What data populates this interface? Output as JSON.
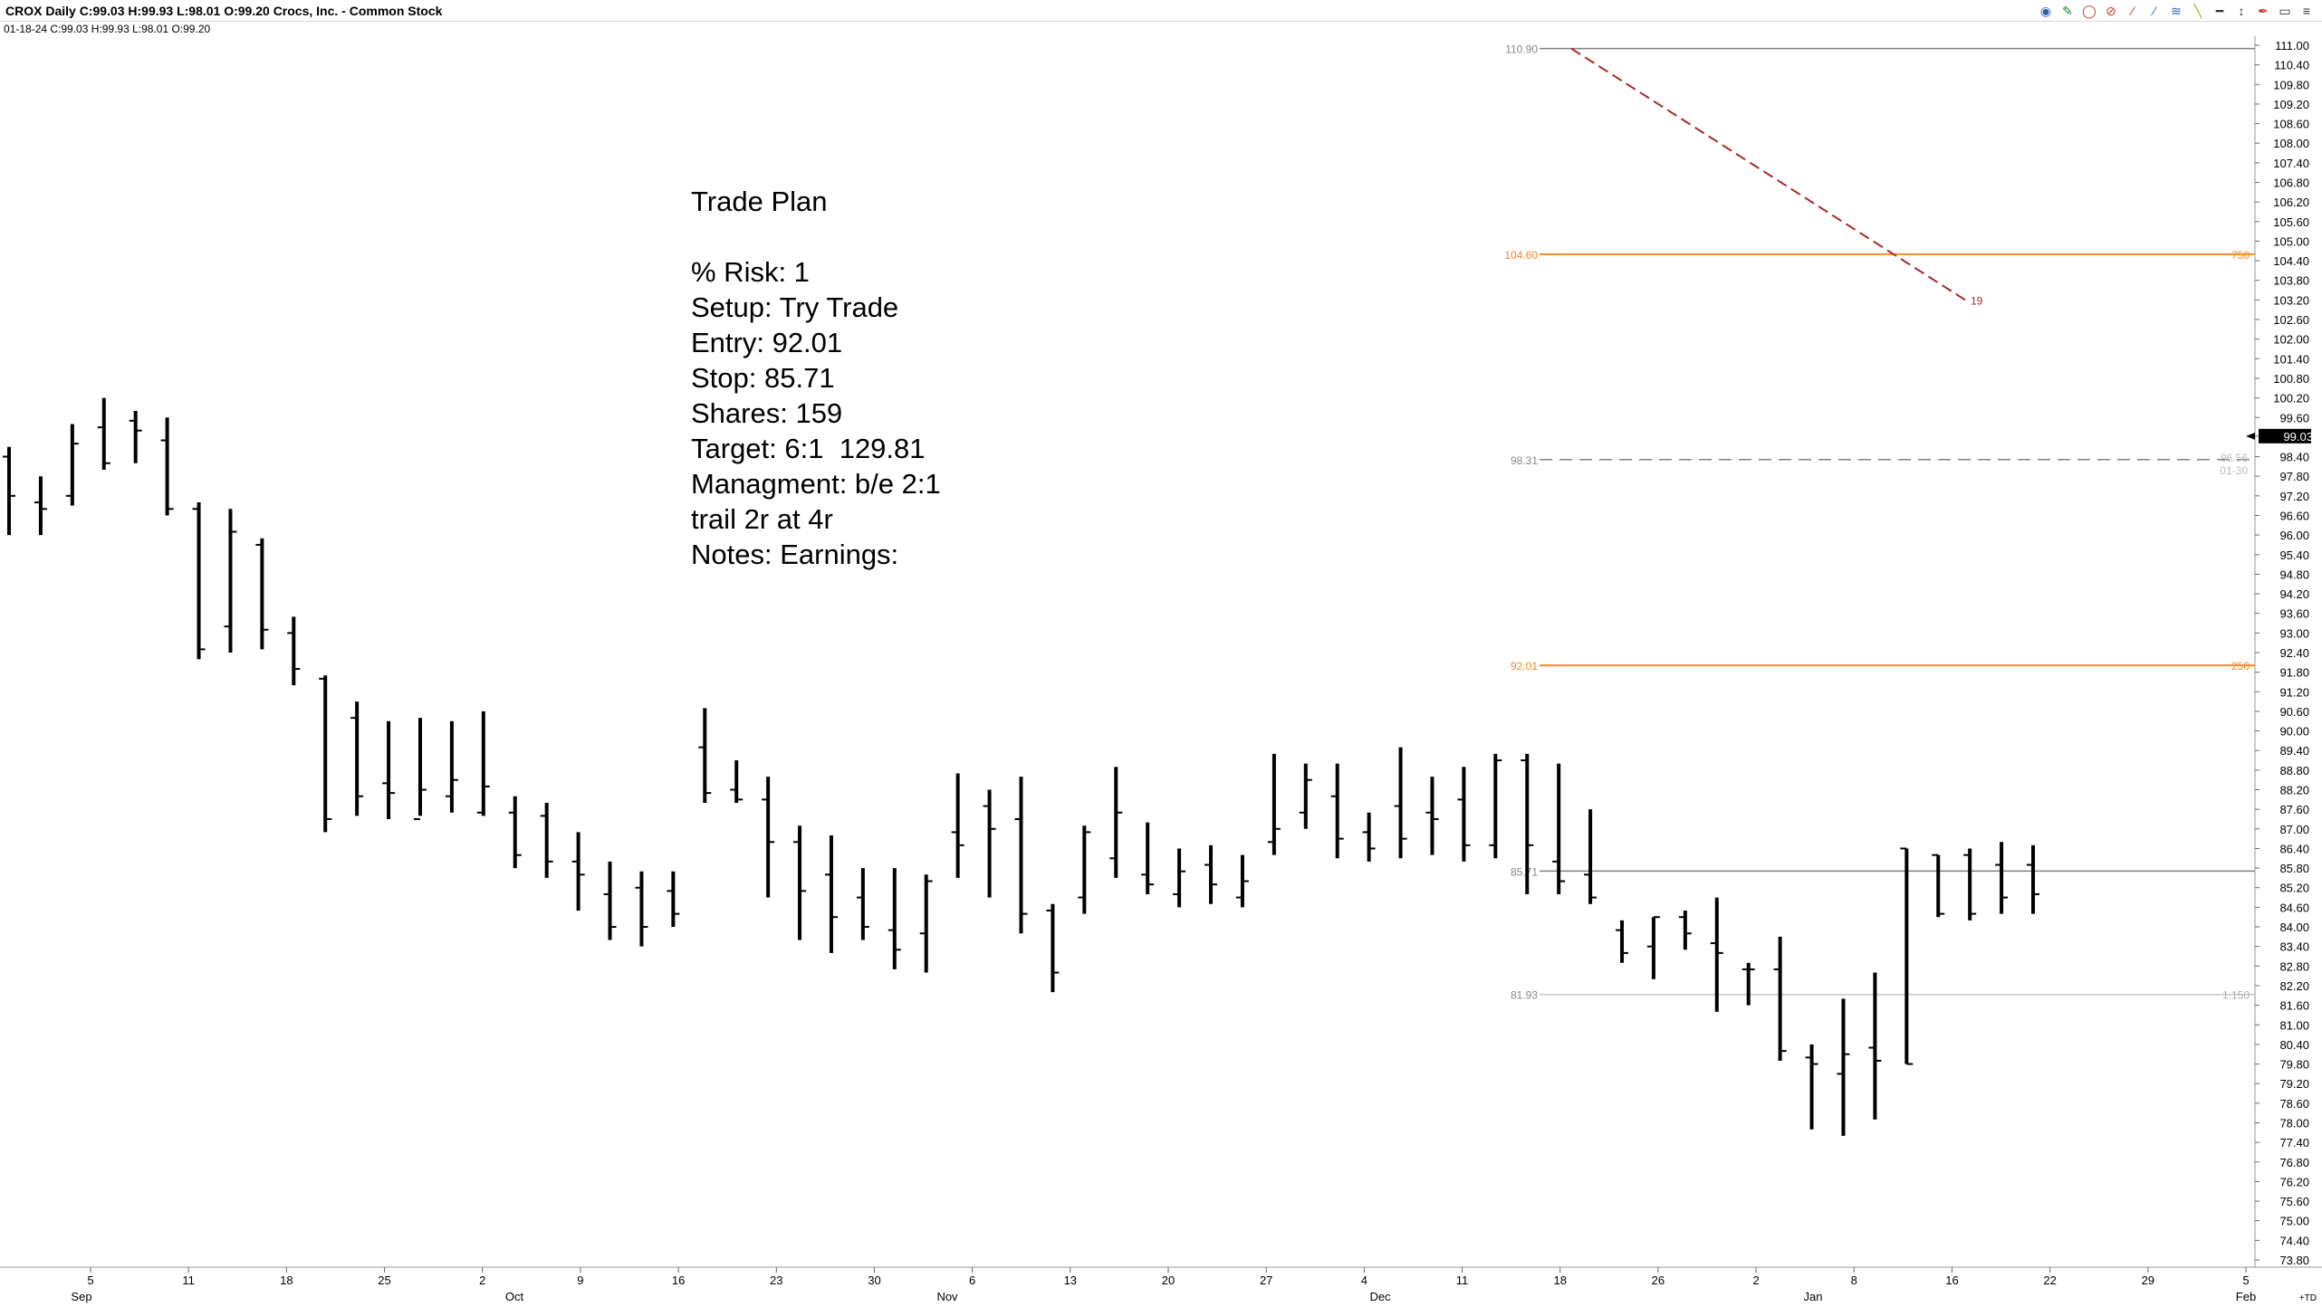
{
  "header": {
    "title": "CROX Daily C:99.03 H:99.93 L:98.01 O:99.20 Crocs, Inc. - Common Stock",
    "ohlc": "01-18-24 C:99.03 H:99.93 L:98.01 O:99.20"
  },
  "toolbar": {
    "tools": [
      {
        "icon": "globe-icon",
        "glyph": "◉",
        "color": "#2c5fb5"
      },
      {
        "icon": "pencil-icon",
        "glyph": "✎",
        "color": "#1f8a3a"
      },
      {
        "icon": "circle-tool-icon",
        "glyph": "◯",
        "color": "#c0392b"
      },
      {
        "icon": "stop-icon",
        "glyph": "⊘",
        "color": "#c0392b"
      },
      {
        "icon": "brush-icon",
        "glyph": "∕",
        "color": "#c0392b"
      },
      {
        "icon": "trendline-icon",
        "glyph": "⁄",
        "color": "#2c5fb5"
      },
      {
        "icon": "fib-lines-icon",
        "glyph": "≋",
        "color": "#2c5fb5"
      },
      {
        "icon": "marker-icon",
        "glyph": "╲",
        "color": "#c09a00"
      },
      {
        "icon": "level-line-icon",
        "glyph": "━",
        "color": "#333333"
      },
      {
        "icon": "price-arrow-icon",
        "glyph": "↕",
        "color": "#333333"
      },
      {
        "icon": "pen-icon",
        "glyph": "✒",
        "color": "#c0392b"
      },
      {
        "icon": "window-icon",
        "glyph": "▭",
        "color": "#333333"
      },
      {
        "icon": "menu-icon",
        "glyph": "≡",
        "color": "#333333"
      }
    ]
  },
  "trade_plan": {
    "lines": [
      "Trade Plan",
      "",
      "% Risk: 1",
      "Setup: Try Trade",
      "Entry: 92.01",
      "Stop: 85.71",
      "Shares: 159",
      "Target: 6:1  129.81",
      "Managment: b/e 2:1",
      "trail 2r at 4r",
      "Notes: Earnings:"
    ]
  },
  "colors": {
    "bar": "#000000",
    "orange": "#f28c28",
    "gray_line": "#808080",
    "light_line": "#c8c8c8",
    "trend": "#a52a2a",
    "last_price_bg": "#000000"
  },
  "chart_data": {
    "type": "ohlc",
    "ylim": [
      73.8,
      111.0
    ],
    "y_ticks": [
      "111.00",
      "110.40",
      "109.80",
      "109.20",
      "108.60",
      "108.00",
      "107.40",
      "106.80",
      "106.20",
      "105.60",
      "105.00",
      "104.40",
      "103.80",
      "103.20",
      "102.60",
      "102.00",
      "101.40",
      "100.80",
      "100.20",
      "99.60",
      "99.03",
      "98.40",
      "97.80",
      "97.20",
      "96.60",
      "96.00",
      "95.40",
      "94.80",
      "94.20",
      "93.60",
      "93.00",
      "92.40",
      "91.80",
      "91.20",
      "90.60",
      "90.00",
      "89.40",
      "88.80",
      "88.20",
      "87.60",
      "87.00",
      "86.40",
      "85.80",
      "85.20",
      "84.60",
      "84.00",
      "83.40",
      "82.80",
      "82.20",
      "81.60",
      "81.00",
      "80.40",
      "79.80",
      "79.20",
      "78.60",
      "78.00",
      "77.40",
      "76.80",
      "76.20",
      "75.60",
      "75.00",
      "74.40",
      "73.80"
    ],
    "last_price": "99.03",
    "x_ticks": [
      "5",
      "11",
      "18",
      "25",
      "2",
      "9",
      "16",
      "23",
      "30",
      "6",
      "13",
      "20",
      "27",
      "4",
      "11",
      "18",
      "26",
      "2",
      "8",
      "16",
      "22",
      "29",
      "5"
    ],
    "months": [
      "Sep",
      "Oct",
      "Nov",
      "Dec",
      "Jan",
      "Feb"
    ],
    "corner_label": "+TD",
    "bars": [
      {
        "o": 98.4,
        "h": 98.7,
        "l": 96.0,
        "c": 97.2
      },
      {
        "o": 97.0,
        "h": 97.8,
        "l": 96.0,
        "c": 96.8
      },
      {
        "o": 97.2,
        "h": 99.4,
        "l": 96.9,
        "c": 98.8
      },
      {
        "o": 99.3,
        "h": 100.2,
        "l": 98.0,
        "c": 98.2
      },
      {
        "o": 99.5,
        "h": 99.8,
        "l": 98.2,
        "c": 99.2
      },
      {
        "o": 98.9,
        "h": 99.6,
        "l": 96.6,
        "c": 96.8
      },
      {
        "o": 96.8,
        "h": 97.0,
        "l": 92.2,
        "c": 92.5
      },
      {
        "o": 93.2,
        "h": 96.8,
        "l": 92.4,
        "c": 96.1
      },
      {
        "o": 95.7,
        "h": 95.9,
        "l": 92.5,
        "c": 93.1
      },
      {
        "o": 93.0,
        "h": 93.5,
        "l": 91.4,
        "c": 91.9
      },
      {
        "o": 91.6,
        "h": 91.7,
        "l": 86.9,
        "c": 87.3
      },
      {
        "o": 90.4,
        "h": 90.9,
        "l": 87.4,
        "c": 88.0
      },
      {
        "o": 88.4,
        "h": 90.3,
        "l": 87.3,
        "c": 88.1
      },
      {
        "o": 87.3,
        "h": 90.4,
        "l": 87.4,
        "c": 88.2
      },
      {
        "o": 88.0,
        "h": 90.3,
        "l": 87.5,
        "c": 88.5
      },
      {
        "o": 87.5,
        "h": 90.6,
        "l": 87.4,
        "c": 88.3
      },
      {
        "o": 87.5,
        "h": 88.0,
        "l": 85.8,
        "c": 86.2
      },
      {
        "o": 87.4,
        "h": 87.8,
        "l": 85.5,
        "c": 86.0
      },
      {
        "o": 86.0,
        "h": 86.9,
        "l": 84.5,
        "c": 85.6
      },
      {
        "o": 85.0,
        "h": 86.0,
        "l": 83.6,
        "c": 84.0
      },
      {
        "o": 85.2,
        "h": 85.7,
        "l": 83.4,
        "c": 84.0
      },
      {
        "o": 85.1,
        "h": 85.7,
        "l": 84.0,
        "c": 84.4
      },
      {
        "o": 89.5,
        "h": 90.7,
        "l": 87.8,
        "c": 88.1
      },
      {
        "o": 88.2,
        "h": 89.1,
        "l": 87.8,
        "c": 87.9
      },
      {
        "o": 87.9,
        "h": 88.6,
        "l": 84.9,
        "c": 86.6
      },
      {
        "o": 86.6,
        "h": 87.1,
        "l": 83.6,
        "c": 85.1
      },
      {
        "o": 85.6,
        "h": 86.8,
        "l": 83.2,
        "c": 84.3
      },
      {
        "o": 84.9,
        "h": 85.8,
        "l": 83.6,
        "c": 84.0
      },
      {
        "o": 83.9,
        "h": 85.8,
        "l": 82.7,
        "c": 83.3
      },
      {
        "o": 83.8,
        "h": 85.6,
        "l": 82.6,
        "c": 85.4
      },
      {
        "o": 86.9,
        "h": 88.7,
        "l": 85.5,
        "c": 86.5
      },
      {
        "o": 87.7,
        "h": 88.2,
        "l": 84.9,
        "c": 87.0
      },
      {
        "o": 87.3,
        "h": 88.6,
        "l": 83.8,
        "c": 84.4
      },
      {
        "o": 84.5,
        "h": 84.7,
        "l": 82.0,
        "c": 82.6
      },
      {
        "o": 84.9,
        "h": 87.1,
        "l": 84.4,
        "c": 86.9
      },
      {
        "o": 86.1,
        "h": 88.9,
        "l": 85.5,
        "c": 87.5
      },
      {
        "o": 85.6,
        "h": 87.2,
        "l": 85.0,
        "c": 85.3
      },
      {
        "o": 85.0,
        "h": 86.4,
        "l": 84.6,
        "c": 85.7
      },
      {
        "o": 85.9,
        "h": 86.5,
        "l": 84.7,
        "c": 85.3
      },
      {
        "o": 84.9,
        "h": 86.2,
        "l": 84.6,
        "c": 85.4
      },
      {
        "o": 86.6,
        "h": 89.3,
        "l": 86.2,
        "c": 87.0
      },
      {
        "o": 87.5,
        "h": 89.0,
        "l": 87.0,
        "c": 88.5
      },
      {
        "o": 88.0,
        "h": 89.0,
        "l": 86.1,
        "c": 86.7
      },
      {
        "o": 86.9,
        "h": 87.5,
        "l": 86.0,
        "c": 86.4
      },
      {
        "o": 87.7,
        "h": 89.5,
        "l": 86.1,
        "c": 86.7
      },
      {
        "o": 87.5,
        "h": 88.6,
        "l": 86.2,
        "c": 87.3
      },
      {
        "o": 87.9,
        "h": 88.9,
        "l": 86.0,
        "c": 86.5
      },
      {
        "o": 86.5,
        "h": 89.3,
        "l": 86.1,
        "c": 89.1
      },
      {
        "o": 89.1,
        "h": 89.3,
        "l": 85.0,
        "c": 86.5
      },
      {
        "o": 86.0,
        "h": 89.0,
        "l": 85.0,
        "c": 85.4
      },
      {
        "o": 85.6,
        "h": 87.6,
        "l": 84.7,
        "c": 84.9
      },
      {
        "o": 83.9,
        "h": 84.2,
        "l": 82.9,
        "c": 83.2
      },
      {
        "o": 83.4,
        "h": 84.3,
        "l": 82.4,
        "c": 84.3
      },
      {
        "o": 84.3,
        "h": 84.5,
        "l": 83.3,
        "c": 83.8
      },
      {
        "o": 83.5,
        "h": 84.9,
        "l": 81.4,
        "c": 83.2
      },
      {
        "o": 82.7,
        "h": 82.9,
        "l": 81.6,
        "c": 82.7
      },
      {
        "o": 82.7,
        "h": 83.7,
        "l": 79.9,
        "c": 80.2
      },
      {
        "o": 80.0,
        "h": 80.4,
        "l": 77.8,
        "c": 79.8
      },
      {
        "o": 79.5,
        "h": 81.8,
        "l": 77.6,
        "c": 80.1
      },
      {
        "o": 80.3,
        "h": 82.6,
        "l": 78.1,
        "c": 79.9
      },
      {
        "o": 86.4,
        "h": 86.4,
        "l": 79.8,
        "c": 79.8
      },
      {
        "o": 86.2,
        "h": 86.2,
        "l": 84.3,
        "c": 84.4
      },
      {
        "o": 86.2,
        "h": 86.4,
        "l": 84.2,
        "c": 84.4
      },
      {
        "o": 85.9,
        "h": 86.6,
        "l": 84.4,
        "c": 84.9
      },
      {
        "o": 85.9,
        "h": 86.5,
        "l": 84.4,
        "c": 85.0
      }
    ],
    "levels": [
      {
        "label": "110.90",
        "value": 110.9,
        "right": "",
        "color": "gray"
      },
      {
        "label": "104.60",
        "value": 104.6,
        "right": "750",
        "color": "orange"
      },
      {
        "label": "98.31",
        "value": 98.31,
        "right": "",
        "color": "dashed"
      },
      {
        "label": "92.01",
        "value": 92.01,
        "right": "250",
        "color": "orange"
      },
      {
        "label": "85.71",
        "value": 85.71,
        "right": "",
        "color": "gray"
      },
      {
        "label": "81.93",
        "value": 81.93,
        "right": "1.150",
        "color": "light"
      }
    ],
    "level_notes": [
      "96.56",
      "01-30"
    ],
    "trend_marker": "19"
  }
}
